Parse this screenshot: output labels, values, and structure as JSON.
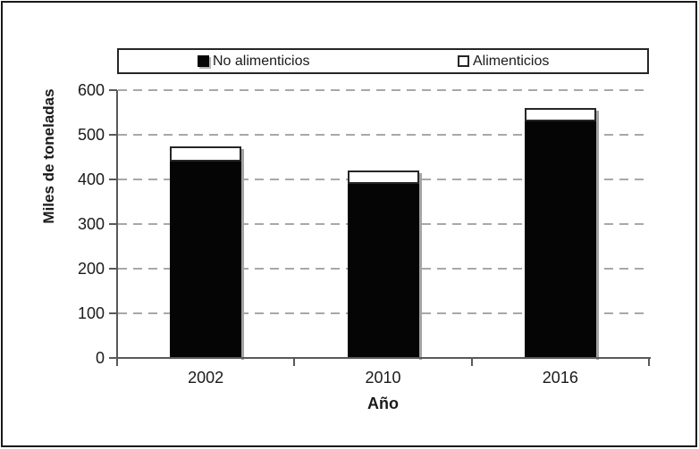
{
  "chart_data": {
    "type": "bar",
    "stacked": true,
    "title": "",
    "categories": [
      "2002",
      "2010",
      "2016"
    ],
    "series": [
      {
        "name": "No alimenticios",
        "color": "#000000",
        "swatch": "black-filled-square",
        "values": [
          440,
          390,
          530
        ]
      },
      {
        "name": "Alimenticios",
        "color": "#ffffff",
        "swatch": "white-outline-square",
        "values": [
          35,
          30,
          30
        ]
      }
    ],
    "totals": [
      475,
      420,
      560
    ],
    "xlabel": "Año",
    "ylabel": "Miles de toneladas",
    "ylim": [
      0,
      600
    ],
    "ytick_step": 100,
    "yticks": [
      "0",
      "100",
      "200",
      "300",
      "400",
      "500",
      "600"
    ],
    "grid": "horizontal-dashed",
    "legend_position": "top"
  },
  "colors": {
    "bar_fill": "#050505",
    "bar_shadow": "#a3a3a3",
    "axis": "#595959",
    "gridline": "#a8a8a8",
    "text": "#1a1a1a",
    "frame_border": "#1a1a1a",
    "background": "#ffffff"
  }
}
